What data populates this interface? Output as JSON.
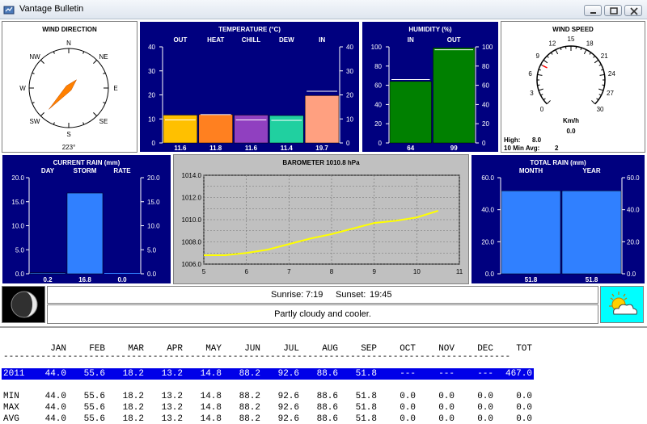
{
  "window": {
    "title": "Vantage Bulletin"
  },
  "wind_direction": {
    "title": "WIND DIRECTION",
    "compass": [
      "N",
      "NE",
      "E",
      "SE",
      "S",
      "SW",
      "W",
      "NW"
    ],
    "degrees": 223,
    "readout": "223°"
  },
  "temperature": {
    "title": "TEMPERATURE  (°C)",
    "axis_ticks": [
      "40",
      "30",
      "20",
      "10",
      "0"
    ],
    "ylim": [
      0,
      40
    ],
    "bars": [
      {
        "label": "OUT",
        "value": 11.6,
        "display": "11.6",
        "color": "#ffc000",
        "high": 9.6
      },
      {
        "label": "HEAT",
        "value": 11.8,
        "display": "11.8",
        "color": "#ff8020",
        "high": 11.8
      },
      {
        "label": "CHILL",
        "value": 11.6,
        "display": "11.6",
        "color": "#9040c0",
        "high": 9.6
      },
      {
        "label": "DEW",
        "value": 11.4,
        "display": "11.4",
        "color": "#20d0a0",
        "high": 9.4
      },
      {
        "label": "IN",
        "value": 19.7,
        "display": "19.7",
        "color": "#ffa080",
        "high": 21.5
      }
    ]
  },
  "humidity": {
    "title": "HUMIDITY  (%)",
    "axis_ticks": [
      "100",
      "80",
      "60",
      "40",
      "20",
      "0"
    ],
    "ylim": [
      0,
      100
    ],
    "bars": [
      {
        "label": "IN",
        "value": 64,
        "display": "64",
        "color": "#008000",
        "high": 66
      },
      {
        "label": "OUT",
        "value": 99,
        "display": "99",
        "color": "#008000",
        "high": 97
      }
    ]
  },
  "wind_speed": {
    "title": "WIND SPEED",
    "ticks": [
      "0",
      "3",
      "6",
      "9",
      "12",
      "15",
      "18",
      "21",
      "24",
      "27",
      "30"
    ],
    "unit": "Km/h",
    "value": 0.0,
    "readout": "0.0",
    "high_label": "High:",
    "high_value": "8.0",
    "avg_label": "10 Min Avg:",
    "avg_value": "2"
  },
  "current_rain": {
    "title": "CURRENT RAIN  (mm)",
    "axis_ticks": [
      "20.0",
      "15.0",
      "10.0",
      "5.0",
      "0.0"
    ],
    "ylim": [
      0,
      20
    ],
    "bars": [
      {
        "label": "DAY",
        "value": 0.2,
        "display": "0.2",
        "color": "#3080ff"
      },
      {
        "label": "STORM",
        "value": 16.8,
        "display": "16.8",
        "color": "#3080ff"
      },
      {
        "label": "RATE",
        "value": 0.0,
        "display": "0.0",
        "color": "#3080ff"
      }
    ]
  },
  "barometer": {
    "title": "BAROMETER 1010.8 hPa",
    "y_ticks": [
      "1014.0",
      "1012.0",
      "1010.0",
      "1008.0",
      "1006.0"
    ],
    "x_ticks": [
      "5",
      "6",
      "7",
      "8",
      "9",
      "10",
      "11"
    ],
    "xlim": [
      5,
      11
    ],
    "ylim": [
      1006,
      1014
    ],
    "series": [
      [
        5.0,
        1006.8
      ],
      [
        5.5,
        1006.8
      ],
      [
        6.0,
        1007.0
      ],
      [
        6.5,
        1007.3
      ],
      [
        7.0,
        1007.8
      ],
      [
        7.5,
        1008.3
      ],
      [
        8.0,
        1008.7
      ],
      [
        8.5,
        1009.2
      ],
      [
        9.0,
        1009.7
      ],
      [
        9.5,
        1009.9
      ],
      [
        10.0,
        1010.2
      ],
      [
        10.5,
        1010.8
      ]
    ]
  },
  "total_rain": {
    "title": "TOTAL RAIN  (mm)",
    "axis_ticks": [
      "60.0",
      "40.0",
      "20.0",
      "0.0"
    ],
    "ylim": [
      0,
      60
    ],
    "bars": [
      {
        "label": "MONTH",
        "value": 51.8,
        "display": "51.8",
        "color": "#3080ff"
      },
      {
        "label": "YEAR",
        "value": 51.8,
        "display": "51.8",
        "color": "#3080ff"
      }
    ]
  },
  "sun": {
    "sunrise_label": "Sunrise:",
    "sunrise": "7:19",
    "sunset_label": "Sunset:",
    "sunset": "19:45"
  },
  "forecast": "Partly cloudy and cooler.",
  "table": {
    "columns": [
      "JAN",
      "FEB",
      "MAR",
      "APR",
      "MAY",
      "JUN",
      "JUL",
      "AUG",
      "SEP",
      "OCT",
      "NOV",
      "DEC",
      "TOT"
    ],
    "year_row": {
      "label": "2011",
      "values": [
        "44.0",
        "55.6",
        "18.2",
        "13.2",
        "14.8",
        "88.2",
        "92.6",
        "88.6",
        "51.8",
        "---",
        "---",
        "---",
        "467.0"
      ]
    },
    "stats": [
      {
        "label": "MIN",
        "values": [
          "44.0",
          "55.6",
          "18.2",
          "13.2",
          "14.8",
          "88.2",
          "92.6",
          "88.6",
          "51.8",
          "0.0",
          "0.0",
          "0.0",
          "0.0"
        ]
      },
      {
        "label": "MAX",
        "values": [
          "44.0",
          "55.6",
          "18.2",
          "13.2",
          "14.8",
          "88.2",
          "92.6",
          "88.6",
          "51.8",
          "0.0",
          "0.0",
          "0.0",
          "0.0"
        ]
      },
      {
        "label": "AVG",
        "values": [
          "44.0",
          "55.6",
          "18.2",
          "13.2",
          "14.8",
          "88.2",
          "92.6",
          "88.6",
          "51.8",
          "0.0",
          "0.0",
          "0.0",
          "0.0"
        ]
      }
    ]
  }
}
